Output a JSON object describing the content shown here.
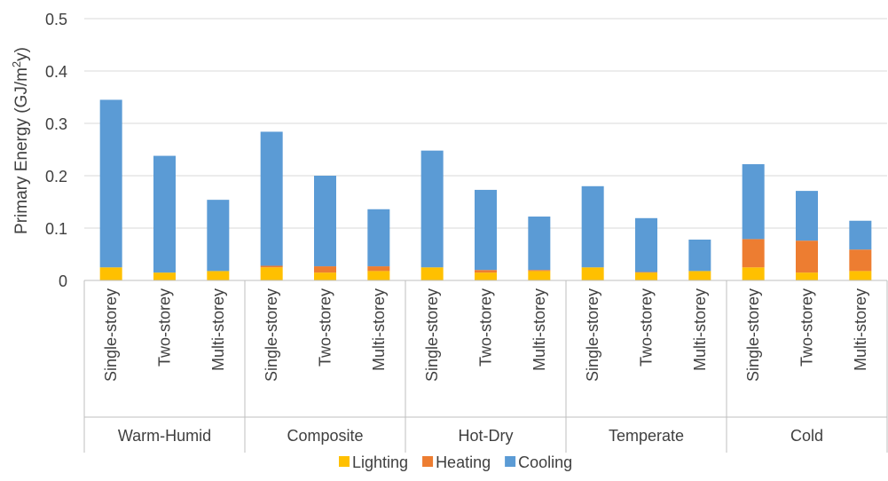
{
  "chart_data": {
    "type": "bar",
    "stacked": true,
    "title": "",
    "ylabel_prefix": "Primary Energy (GJ/m",
    "ylabel_sup": "2",
    "ylabel_suffix": "y)",
    "ylim": [
      0,
      0.5
    ],
    "yticks": [
      0,
      0.1,
      0.2,
      0.3,
      0.4,
      0.5
    ],
    "ytick_labels": [
      "0",
      "0.1",
      "0.2",
      "0.3",
      "0.4",
      "0.5"
    ],
    "grid": true,
    "legend_position": "bottom",
    "groups": [
      {
        "name": "Warm-Humid",
        "categories": [
          "Single-storey",
          "Two-storey",
          "Multi-storey"
        ]
      },
      {
        "name": "Composite",
        "categories": [
          "Single-storey",
          "Two-storey",
          "Multi-storey"
        ]
      },
      {
        "name": "Hot-Dry",
        "categories": [
          "Single-storey",
          "Two-storey",
          "Multi-storey"
        ]
      },
      {
        "name": "Temperate",
        "categories": [
          "Single-storey",
          "Two-storey",
          "Multi-storey"
        ]
      },
      {
        "name": "Cold",
        "categories": [
          "Single-storey",
          "Two-storey",
          "Multi-storey"
        ]
      }
    ],
    "series": [
      {
        "name": "Lighting",
        "color": "#FFC000",
        "values": [
          0.025,
          0.015,
          0.018,
          0.025,
          0.015,
          0.018,
          0.025,
          0.015,
          0.018,
          0.025,
          0.015,
          0.018,
          0.025,
          0.015,
          0.018
        ]
      },
      {
        "name": "Heating",
        "color": "#ED7D31",
        "values": [
          0.0,
          0.0,
          0.0,
          0.003,
          0.012,
          0.009,
          0.0,
          0.005,
          0.002,
          0.0,
          0.001,
          0.0,
          0.054,
          0.061,
          0.041
        ]
      },
      {
        "name": "Cooling",
        "color": "#5B9BD5",
        "values": [
          0.32,
          0.223,
          0.136,
          0.256,
          0.173,
          0.109,
          0.223,
          0.153,
          0.102,
          0.155,
          0.103,
          0.06,
          0.143,
          0.095,
          0.055
        ]
      }
    ]
  }
}
